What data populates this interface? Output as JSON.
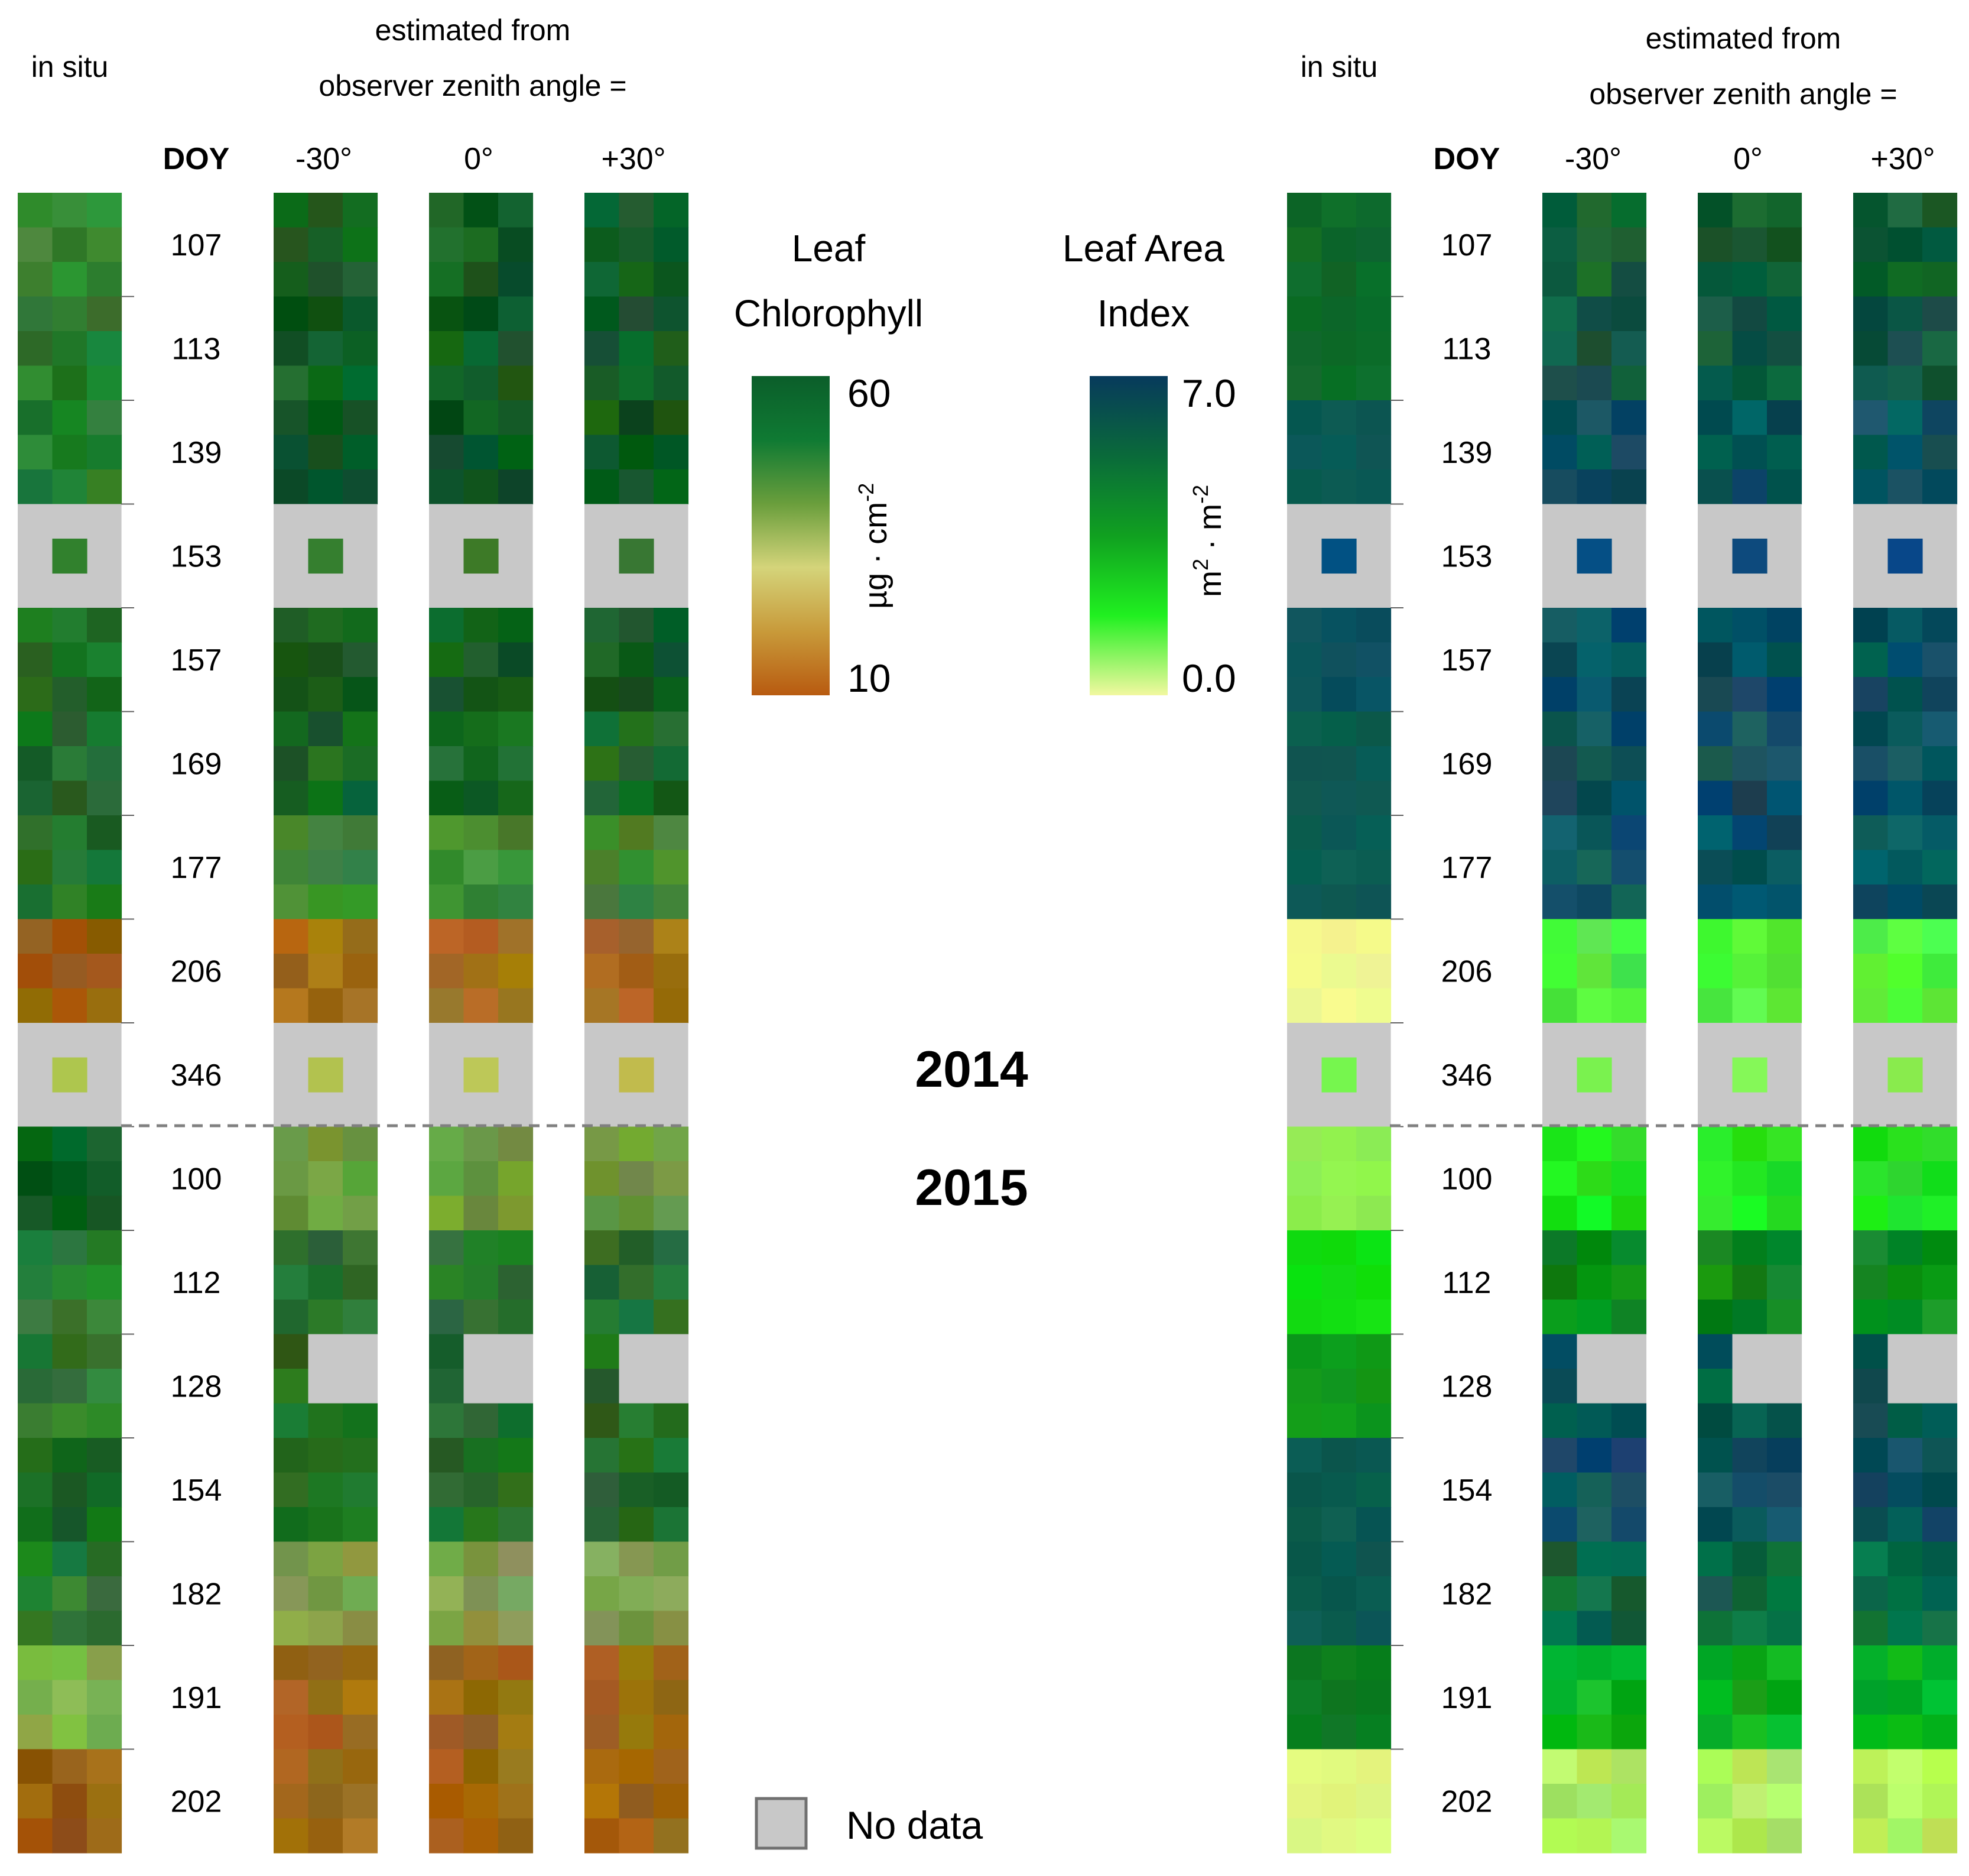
{
  "headers": {
    "in_situ": "in situ",
    "estimated_line1": "estimated from",
    "estimated_line2": "observer zenith angle =",
    "doy": "DOY",
    "angle_neg": "-30°",
    "angle_zero": "0°",
    "angle_pos": "+30°"
  },
  "doy_labels": [
    "107",
    "113",
    "139",
    "153",
    "157",
    "169",
    "177",
    "206",
    "346",
    "100",
    "112",
    "128",
    "154",
    "182",
    "191",
    "202"
  ],
  "years": {
    "first": "2014",
    "second": "2015"
  },
  "legend_chlorophyll": {
    "title_line1": "Leaf",
    "title_line2": "Chlorophyll",
    "max_label": "60",
    "min_label": "10",
    "unit": "µg · cm",
    "unit_exp": "-2",
    "colors": [
      "#0b5e2a",
      "#0f7a33",
      "#6a9e3c",
      "#d4d47a",
      "#c89a3a",
      "#b85a10"
    ]
  },
  "legend_lai": {
    "title_line1": "Leaf Area",
    "title_line2": "Index",
    "max_label": "7.0",
    "min_label": "0.0",
    "unit_base": "m",
    "unit_exp1": "2",
    "unit_mid": " · m",
    "unit_exp2": "-2",
    "colors": [
      "#073a5c",
      "#0a6a3a",
      "#10a020",
      "#20f020",
      "#f2f8a0"
    ]
  },
  "no_data_label": "No data",
  "colors": {
    "no_data": "#c8c8c8",
    "separator": "#808080"
  }
}
